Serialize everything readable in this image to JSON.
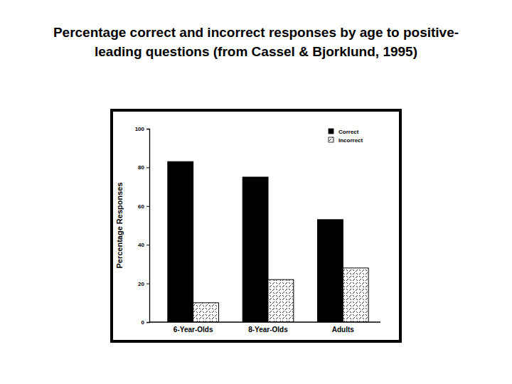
{
  "chart_data": {
    "type": "bar",
    "title": [
      "Percentage correct and incorrect responses by age to positive-",
      "leading questions (from Cassel & Bjorklund, 1995)"
    ],
    "y_label": "Percentage Responses",
    "categories": [
      "6-Year-Olds",
      "8-Year-Olds",
      "Adults"
    ],
    "series": [
      {
        "name": "Correct",
        "color": "#000000",
        "values": [
          83,
          75,
          53
        ]
      },
      {
        "name": "Incorrect",
        "color": "#ffffff",
        "values": [
          10,
          22,
          28
        ]
      }
    ],
    "ylim": [
      0,
      100
    ],
    "yticks": [
      0,
      20,
      40,
      60,
      80,
      100
    ],
    "legend": "upper right"
  }
}
